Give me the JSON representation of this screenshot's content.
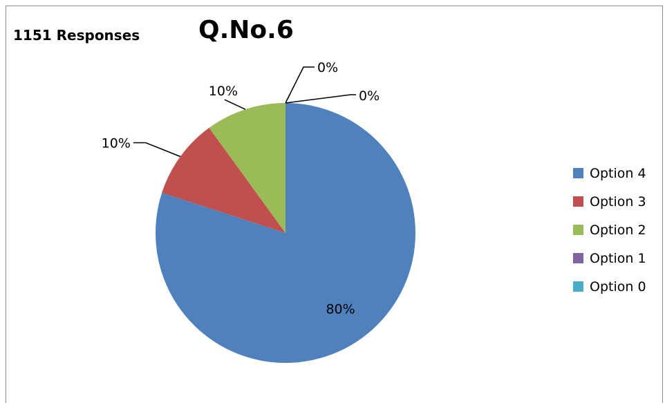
{
  "header": {
    "responses_text": "1151 Responses"
  },
  "chart_data": {
    "type": "pie",
    "title": "Q.No.6",
    "categories": [
      "Option 4",
      "Option 3",
      "Option 2",
      "Option 1",
      "Option 0"
    ],
    "values": [
      80,
      10,
      10,
      0,
      0
    ],
    "data_labels": [
      "80%",
      "10%",
      "10%",
      "0%",
      "0%"
    ],
    "colors": [
      "#4F81BD",
      "#C0504D",
      "#9BBB59",
      "#8064A2",
      "#4BACC6"
    ],
    "legend_position": "right",
    "legend": [
      "Option 4",
      "Option 3",
      "Option 2",
      "Option 1",
      "Option 0"
    ]
  }
}
